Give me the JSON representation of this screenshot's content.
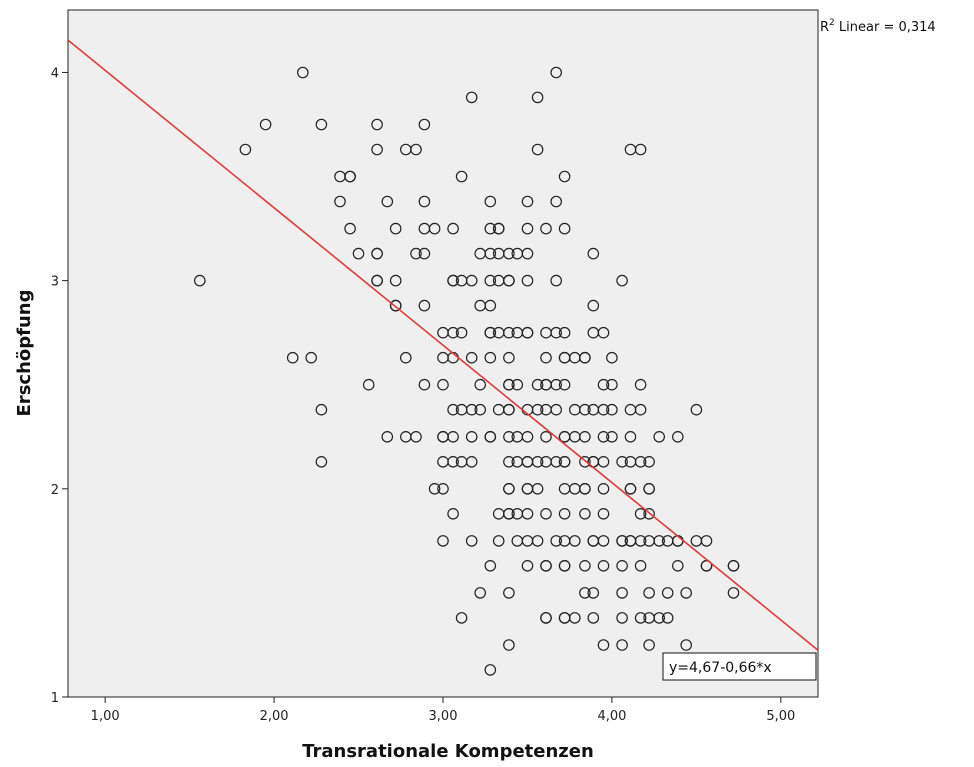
{
  "chart_data": {
    "type": "scatter",
    "xlabel": "Transrationale Kompetenzen",
    "ylabel": "Erschöpfung",
    "xlim": [
      0.78,
      5.22
    ],
    "ylim": [
      1.0,
      4.3
    ],
    "x_ticks": [
      1.0,
      2.0,
      3.0,
      4.0,
      5.0
    ],
    "x_tick_labels": [
      "1,00",
      "2,00",
      "3,00",
      "4,00",
      "5,00"
    ],
    "y_ticks": [
      1,
      2,
      3,
      4
    ],
    "y_tick_labels": [
      "1",
      "2",
      "3",
      "4"
    ],
    "grid": false,
    "background": "#efefef",
    "marker": "open-circle",
    "marker_color": "#222222",
    "fit_line": {
      "type": "linear",
      "intercept": 4.67,
      "slope": -0.66,
      "color": "#e0393e",
      "equation_label": "y=4,67-0,66*x",
      "r2_label_prefix": "R",
      "r2_label_sup": "2",
      "r2_label_suffix": " Linear = 0,314"
    },
    "points": [
      [
        2.17,
        4.0
      ],
      [
        3.67,
        4.0
      ],
      [
        3.17,
        3.88
      ],
      [
        3.56,
        3.88
      ],
      [
        1.95,
        3.75
      ],
      [
        2.28,
        3.75
      ],
      [
        2.61,
        3.75
      ],
      [
        2.89,
        3.75
      ],
      [
        1.83,
        3.63
      ],
      [
        2.61,
        3.63
      ],
      [
        2.78,
        3.63
      ],
      [
        2.84,
        3.63
      ],
      [
        3.56,
        3.63
      ],
      [
        4.11,
        3.63
      ],
      [
        4.17,
        3.63
      ],
      [
        2.39,
        3.5
      ],
      [
        2.45,
        3.5
      ],
      [
        2.45,
        3.5
      ],
      [
        3.11,
        3.5
      ],
      [
        3.72,
        3.5
      ],
      [
        2.39,
        3.38
      ],
      [
        2.67,
        3.38
      ],
      [
        2.89,
        3.38
      ],
      [
        3.28,
        3.38
      ],
      [
        3.5,
        3.38
      ],
      [
        3.67,
        3.38
      ],
      [
        2.45,
        3.25
      ],
      [
        2.72,
        3.25
      ],
      [
        2.89,
        3.25
      ],
      [
        2.95,
        3.25
      ],
      [
        3.06,
        3.25
      ],
      [
        3.28,
        3.25
      ],
      [
        3.33,
        3.25
      ],
      [
        3.33,
        3.25
      ],
      [
        3.5,
        3.25
      ],
      [
        3.61,
        3.25
      ],
      [
        3.72,
        3.25
      ],
      [
        2.5,
        3.13
      ],
      [
        2.61,
        3.13
      ],
      [
        2.61,
        3.13
      ],
      [
        2.84,
        3.13
      ],
      [
        2.89,
        3.13
      ],
      [
        3.22,
        3.13
      ],
      [
        3.28,
        3.13
      ],
      [
        3.33,
        3.13
      ],
      [
        3.39,
        3.13
      ],
      [
        3.44,
        3.13
      ],
      [
        3.5,
        3.13
      ],
      [
        3.89,
        3.13
      ],
      [
        1.56,
        3.0
      ],
      [
        2.61,
        3.0
      ],
      [
        2.61,
        3.0
      ],
      [
        2.72,
        3.0
      ],
      [
        3.06,
        3.0
      ],
      [
        3.06,
        3.0
      ],
      [
        3.11,
        3.0
      ],
      [
        3.17,
        3.0
      ],
      [
        3.28,
        3.0
      ],
      [
        3.33,
        3.0
      ],
      [
        3.39,
        3.0
      ],
      [
        3.39,
        3.0
      ],
      [
        3.5,
        3.0
      ],
      [
        3.67,
        3.0
      ],
      [
        4.06,
        3.0
      ],
      [
        2.72,
        2.88
      ],
      [
        2.72,
        2.88
      ],
      [
        2.89,
        2.88
      ],
      [
        3.22,
        2.88
      ],
      [
        3.28,
        2.88
      ],
      [
        3.89,
        2.88
      ],
      [
        3.0,
        2.75
      ],
      [
        3.06,
        2.75
      ],
      [
        3.11,
        2.75
      ],
      [
        3.28,
        2.75
      ],
      [
        3.28,
        2.75
      ],
      [
        3.33,
        2.75
      ],
      [
        3.39,
        2.75
      ],
      [
        3.44,
        2.75
      ],
      [
        3.5,
        2.75
      ],
      [
        3.5,
        2.75
      ],
      [
        3.61,
        2.75
      ],
      [
        3.67,
        2.75
      ],
      [
        3.72,
        2.75
      ],
      [
        3.89,
        2.75
      ],
      [
        3.95,
        2.75
      ],
      [
        2.11,
        2.63
      ],
      [
        2.22,
        2.63
      ],
      [
        2.78,
        2.63
      ],
      [
        3.0,
        2.63
      ],
      [
        3.06,
        2.63
      ],
      [
        3.17,
        2.63
      ],
      [
        3.28,
        2.63
      ],
      [
        3.39,
        2.63
      ],
      [
        3.61,
        2.63
      ],
      [
        3.72,
        2.63
      ],
      [
        3.72,
        2.63
      ],
      [
        3.78,
        2.63
      ],
      [
        3.84,
        2.63
      ],
      [
        3.84,
        2.63
      ],
      [
        4.0,
        2.63
      ],
      [
        2.56,
        2.5
      ],
      [
        2.89,
        2.5
      ],
      [
        3.0,
        2.5
      ],
      [
        3.22,
        2.5
      ],
      [
        3.39,
        2.5
      ],
      [
        3.39,
        2.5
      ],
      [
        3.44,
        2.5
      ],
      [
        3.56,
        2.5
      ],
      [
        3.61,
        2.5
      ],
      [
        3.61,
        2.5
      ],
      [
        3.67,
        2.5
      ],
      [
        3.72,
        2.5
      ],
      [
        3.95,
        2.5
      ],
      [
        4.0,
        2.5
      ],
      [
        4.17,
        2.5
      ],
      [
        2.28,
        2.38
      ],
      [
        3.06,
        2.38
      ],
      [
        3.11,
        2.38
      ],
      [
        3.17,
        2.38
      ],
      [
        3.22,
        2.38
      ],
      [
        3.33,
        2.38
      ],
      [
        3.39,
        2.38
      ],
      [
        3.39,
        2.38
      ],
      [
        3.5,
        2.38
      ],
      [
        3.56,
        2.38
      ],
      [
        3.61,
        2.38
      ],
      [
        3.67,
        2.38
      ],
      [
        3.78,
        2.38
      ],
      [
        3.84,
        2.38
      ],
      [
        3.89,
        2.38
      ],
      [
        3.95,
        2.38
      ],
      [
        4.0,
        2.38
      ],
      [
        4.11,
        2.38
      ],
      [
        4.17,
        2.38
      ],
      [
        4.5,
        2.38
      ],
      [
        2.67,
        2.25
      ],
      [
        2.78,
        2.25
      ],
      [
        2.84,
        2.25
      ],
      [
        3.0,
        2.25
      ],
      [
        3.0,
        2.25
      ],
      [
        3.06,
        2.25
      ],
      [
        3.17,
        2.25
      ],
      [
        3.28,
        2.25
      ],
      [
        3.28,
        2.25
      ],
      [
        3.39,
        2.25
      ],
      [
        3.44,
        2.25
      ],
      [
        3.5,
        2.25
      ],
      [
        3.61,
        2.25
      ],
      [
        3.72,
        2.25
      ],
      [
        3.72,
        2.25
      ],
      [
        3.78,
        2.25
      ],
      [
        3.84,
        2.25
      ],
      [
        3.95,
        2.25
      ],
      [
        4.0,
        2.25
      ],
      [
        4.11,
        2.25
      ],
      [
        4.28,
        2.25
      ],
      [
        4.39,
        2.25
      ],
      [
        2.28,
        2.13
      ],
      [
        3.0,
        2.13
      ],
      [
        3.06,
        2.13
      ],
      [
        3.11,
        2.13
      ],
      [
        3.17,
        2.13
      ],
      [
        3.39,
        2.13
      ],
      [
        3.44,
        2.13
      ],
      [
        3.5,
        2.13
      ],
      [
        3.5,
        2.13
      ],
      [
        3.56,
        2.13
      ],
      [
        3.61,
        2.13
      ],
      [
        3.67,
        2.13
      ],
      [
        3.72,
        2.13
      ],
      [
        3.72,
        2.13
      ],
      [
        3.84,
        2.13
      ],
      [
        3.89,
        2.13
      ],
      [
        3.89,
        2.13
      ],
      [
        3.95,
        2.13
      ],
      [
        4.06,
        2.13
      ],
      [
        4.11,
        2.13
      ],
      [
        4.17,
        2.13
      ],
      [
        4.22,
        2.13
      ],
      [
        2.95,
        2.0
      ],
      [
        3.0,
        2.0
      ],
      [
        3.39,
        2.0
      ],
      [
        3.39,
        2.0
      ],
      [
        3.5,
        2.0
      ],
      [
        3.5,
        2.0
      ],
      [
        3.56,
        2.0
      ],
      [
        3.72,
        2.0
      ],
      [
        3.78,
        2.0
      ],
      [
        3.84,
        2.0
      ],
      [
        3.84,
        2.0
      ],
      [
        3.95,
        2.0
      ],
      [
        4.11,
        2.0
      ],
      [
        4.11,
        2.0
      ],
      [
        4.22,
        2.0
      ],
      [
        4.22,
        2.0
      ],
      [
        3.06,
        1.88
      ],
      [
        3.33,
        1.88
      ],
      [
        3.39,
        1.88
      ],
      [
        3.39,
        1.88
      ],
      [
        3.44,
        1.88
      ],
      [
        3.5,
        1.88
      ],
      [
        3.61,
        1.88
      ],
      [
        3.72,
        1.88
      ],
      [
        3.84,
        1.88
      ],
      [
        3.95,
        1.88
      ],
      [
        4.17,
        1.88
      ],
      [
        4.22,
        1.88
      ],
      [
        3.0,
        1.75
      ],
      [
        3.17,
        1.75
      ],
      [
        3.33,
        1.75
      ],
      [
        3.44,
        1.75
      ],
      [
        3.5,
        1.75
      ],
      [
        3.56,
        1.75
      ],
      [
        3.67,
        1.75
      ],
      [
        3.72,
        1.75
      ],
      [
        3.78,
        1.75
      ],
      [
        3.89,
        1.75
      ],
      [
        3.89,
        1.75
      ],
      [
        3.95,
        1.75
      ],
      [
        4.06,
        1.75
      ],
      [
        4.06,
        1.75
      ],
      [
        4.11,
        1.75
      ],
      [
        4.11,
        1.75
      ],
      [
        4.17,
        1.75
      ],
      [
        4.22,
        1.75
      ],
      [
        4.28,
        1.75
      ],
      [
        4.33,
        1.75
      ],
      [
        4.39,
        1.75
      ],
      [
        4.39,
        1.75
      ],
      [
        4.5,
        1.75
      ],
      [
        4.56,
        1.75
      ],
      [
        3.28,
        1.63
      ],
      [
        3.5,
        1.63
      ],
      [
        3.61,
        1.63
      ],
      [
        3.61,
        1.63
      ],
      [
        3.72,
        1.63
      ],
      [
        3.72,
        1.63
      ],
      [
        3.84,
        1.63
      ],
      [
        3.95,
        1.63
      ],
      [
        4.06,
        1.63
      ],
      [
        4.17,
        1.63
      ],
      [
        4.39,
        1.63
      ],
      [
        4.56,
        1.63
      ],
      [
        4.56,
        1.63
      ],
      [
        4.72,
        1.63
      ],
      [
        4.72,
        1.63
      ],
      [
        3.22,
        1.5
      ],
      [
        3.39,
        1.5
      ],
      [
        3.84,
        1.5
      ],
      [
        3.89,
        1.5
      ],
      [
        4.06,
        1.5
      ],
      [
        4.22,
        1.5
      ],
      [
        4.33,
        1.5
      ],
      [
        4.44,
        1.5
      ],
      [
        4.72,
        1.5
      ],
      [
        3.11,
        1.38
      ],
      [
        3.61,
        1.38
      ],
      [
        3.61,
        1.38
      ],
      [
        3.72,
        1.38
      ],
      [
        3.72,
        1.38
      ],
      [
        3.78,
        1.38
      ],
      [
        3.89,
        1.38
      ],
      [
        4.06,
        1.38
      ],
      [
        4.17,
        1.38
      ],
      [
        4.22,
        1.38
      ],
      [
        4.28,
        1.38
      ],
      [
        4.33,
        1.38
      ],
      [
        3.39,
        1.25
      ],
      [
        3.95,
        1.25
      ],
      [
        4.06,
        1.25
      ],
      [
        4.22,
        1.25
      ],
      [
        4.44,
        1.25
      ],
      [
        3.28,
        1.13
      ]
    ]
  }
}
